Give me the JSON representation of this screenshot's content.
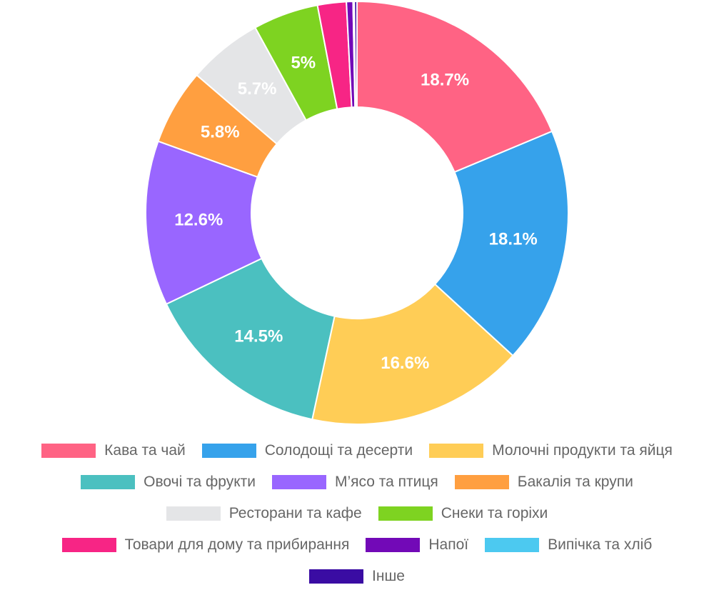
{
  "chart_data": {
    "type": "doughnut",
    "categories": [
      "Кава та чай",
      "Солодощі та десерти",
      "Молочні продукти та яйця",
      "Овочі та фрукти",
      "М’ясо та птиця",
      "Бакалія та крупи",
      "Ресторани та кафе",
      "Снеки та горіхи",
      "Товари для дому та прибирання",
      "Напої",
      "Випічка та хліб",
      "Інше"
    ],
    "values": [
      18.7,
      18.1,
      16.6,
      14.5,
      12.6,
      5.8,
      5.7,
      5,
      2.2,
      0.5,
      0.1,
      0.2
    ],
    "value_labels": [
      "18.7%",
      "18.1%",
      "16.6%",
      "14.5%",
      "12.6%",
      "5.8%",
      "5.7%",
      "5%",
      null,
      null,
      null,
      null
    ],
    "colors": [
      "#ff6384",
      "#36a2eb",
      "#ffcd56",
      "#4bc0c0",
      "#9966ff",
      "#ff9f40",
      "#e4e5e7",
      "#7ed321",
      "#f72585",
      "#7209b7",
      "#4cc9f0",
      "#3a0ca3"
    ],
    "legend": "bottom"
  }
}
